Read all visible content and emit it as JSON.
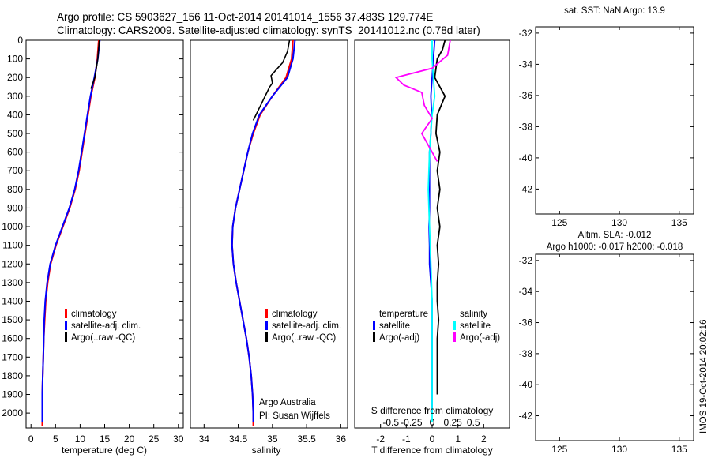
{
  "header": {
    "line1": "Argo profile: CS 5903627_156 11-Oct-2014 20141014_1556 37.483S 129.774E",
    "line2": "Climatology: CARS2009. Satellite-adjusted climatology: synTS_20141012.nc (0.78d later)"
  },
  "colors": {
    "climatology": "#ff0000",
    "satellite": "#0000ff",
    "argo": "#000000",
    "salinity_satellite": "#00ffff",
    "salinity_argo": "#ff00ff",
    "land": "#fcc594",
    "argo_marker": "#66cc33",
    "sla_field": "#3fbf3f"
  },
  "chart_data": [
    {
      "type": "line",
      "name": "temperature-panel",
      "xlabel": "temperature (deg C)",
      "ylabel": "",
      "xlim": [
        -1,
        31
      ],
      "ylim": [
        0,
        2080
      ],
      "y_inverted": true,
      "xticks": [
        0,
        5,
        10,
        15,
        20,
        25,
        30
      ],
      "yticks": [
        0,
        100,
        200,
        300,
        400,
        500,
        600,
        700,
        800,
        900,
        1000,
        1100,
        1200,
        1300,
        1400,
        1500,
        1600,
        1700,
        1800,
        1900,
        2000
      ],
      "legend": [
        "climatology",
        "satellite-adj. clim.",
        "Argo(..raw -QC)"
      ],
      "series": [
        {
          "name": "climatology",
          "x": [
            13.8,
            13.5,
            13.0,
            12.2,
            11.6,
            11.0,
            10.4,
            9.8,
            9.0,
            7.9,
            6.5,
            5.1,
            4.0,
            3.4,
            3.0,
            2.8,
            2.6,
            2.5,
            2.4,
            2.3,
            2.3,
            2.3
          ],
          "y": [
            0,
            100,
            200,
            300,
            400,
            500,
            600,
            700,
            800,
            900,
            1000,
            1100,
            1200,
            1300,
            1400,
            1500,
            1600,
            1700,
            1800,
            1900,
            2000,
            2070
          ]
        },
        {
          "name": "satellite-adj. clim.",
          "x": [
            14.0,
            13.6,
            12.9,
            12.1,
            11.5,
            10.9,
            10.3,
            9.7,
            8.9,
            7.8,
            6.4,
            5.0,
            3.9,
            3.3,
            2.9,
            2.7,
            2.6,
            2.5,
            2.4,
            2.3,
            2.3,
            2.3
          ],
          "y": [
            0,
            100,
            200,
            300,
            400,
            500,
            600,
            700,
            800,
            900,
            1000,
            1100,
            1200,
            1300,
            1400,
            1500,
            1600,
            1700,
            1800,
            1900,
            2000,
            2050
          ]
        },
        {
          "name": "Argo(..raw -QC)",
          "x": [
            13.9,
            13.6,
            13.0,
            12.2
          ],
          "y": [
            0,
            100,
            200,
            260
          ]
        }
      ]
    },
    {
      "type": "line",
      "name": "salinity-panel",
      "xlabel": "salinity",
      "xlim": [
        33.8,
        36.1
      ],
      "ylim": [
        0,
        2080
      ],
      "y_inverted": true,
      "xticks": [
        34,
        34.5,
        35,
        35.5,
        36
      ],
      "legend": [
        "climatology",
        "satellite-adj. clim.",
        "Argo(..raw -QC)"
      ],
      "annotation": [
        "Argo Australia",
        "PI: Susan Wijffels"
      ],
      "series": [
        {
          "name": "climatology",
          "x": [
            35.3,
            35.28,
            35.2,
            35.0,
            34.82,
            34.72,
            34.64,
            34.58,
            34.52,
            34.46,
            34.42,
            34.41,
            34.43,
            34.47,
            34.52,
            34.57,
            34.62,
            34.66,
            34.69,
            34.71,
            34.72,
            34.72
          ],
          "y": [
            0,
            100,
            200,
            300,
            400,
            500,
            600,
            700,
            800,
            900,
            1000,
            1100,
            1200,
            1300,
            1400,
            1500,
            1600,
            1700,
            1800,
            1900,
            2000,
            2070
          ]
        },
        {
          "name": "satellite-adj. clim.",
          "x": [
            35.33,
            35.3,
            35.22,
            35.0,
            34.81,
            34.71,
            34.64,
            34.58,
            34.52,
            34.46,
            34.42,
            34.41,
            34.43,
            34.47,
            34.52,
            34.57,
            34.62,
            34.66,
            34.69,
            34.71,
            34.72,
            34.72
          ],
          "y": [
            0,
            100,
            200,
            300,
            400,
            500,
            600,
            700,
            800,
            900,
            1000,
            1100,
            1200,
            1300,
            1400,
            1500,
            1600,
            1700,
            1800,
            1900,
            2000,
            2050
          ]
        },
        {
          "name": "Argo(..raw -QC)",
          "x": [
            35.25,
            35.22,
            35.15,
            35.05,
            34.98,
            34.99,
            35.0,
            34.96,
            34.92,
            34.88,
            34.84,
            34.8,
            34.76,
            34.72
          ],
          "y": [
            0,
            60,
            120,
            160,
            190,
            210,
            230,
            250,
            280,
            310,
            340,
            370,
            400,
            430
          ]
        }
      ]
    },
    {
      "type": "line",
      "name": "difference-panel",
      "xlabel": "T difference from climatology",
      "xlabel2": "S difference from climatology",
      "xlim": [
        -3,
        3
      ],
      "ylim": [
        0,
        2080
      ],
      "y_inverted": true,
      "xticks": [
        -2,
        -1,
        0,
        1,
        2
      ],
      "xticks_salinity": [
        "-0.5",
        "-0.25",
        "0",
        "0.25",
        "0.5"
      ],
      "legend_headers": [
        "temperature",
        "salinity"
      ],
      "legend": [
        "satellite",
        "Argo(-adj)",
        "satellite",
        "Argo(-adj)"
      ],
      "series": [
        {
          "name": "satellite",
          "x": [
            0.1,
            0.05,
            0.0,
            -0.05,
            -0.02,
            -0.05,
            -0.1,
            -0.1,
            -0.1,
            -0.1,
            -0.12,
            -0.1,
            -0.1,
            -0.05,
            0.0,
            0.0,
            0.0,
            0.0,
            0.0,
            0.0,
            0.0
          ],
          "y": [
            0,
            100,
            200,
            300,
            400,
            500,
            600,
            700,
            800,
            900,
            1000,
            1100,
            1200,
            1300,
            1400,
            1500,
            1600,
            1700,
            1800,
            1900,
            2000
          ]
        },
        {
          "name": "Argo(-adj)",
          "x": [
            0.5,
            0.4,
            0.2,
            0.1,
            0.5,
            0.2,
            0.15,
            0.3,
            0.2,
            0.3,
            0.2,
            0.3,
            0.2,
            0.25,
            0.2,
            0.2,
            0.25,
            0.2,
            0.2,
            0.2,
            0.2
          ],
          "y": [
            0,
            50,
            100,
            200,
            300,
            400,
            500,
            600,
            700,
            800,
            900,
            1000,
            1100,
            1200,
            1300,
            1400,
            1500,
            1600,
            1700,
            1800,
            1900
          ]
        },
        {
          "name": "satellite",
          "x": [
            0.0,
            0.0,
            0.05,
            0.1,
            0.0,
            -0.1,
            -0.15,
            -0.1,
            -0.05,
            0.0,
            0.0,
            0.0,
            0.0,
            0.0
          ],
          "y": [
            0,
            100,
            200,
            300,
            400,
            600,
            800,
            1000,
            1200,
            1400,
            1600,
            1800,
            1900,
            2050
          ]
        },
        {
          "name": "Argo(-adj)",
          "x": [
            0.7,
            0.6,
            0.0,
            -1.4,
            -1.1,
            -0.4,
            -0.3,
            0.0,
            -0.4,
            0.2
          ],
          "y": [
            0,
            80,
            150,
            200,
            240,
            280,
            350,
            420,
            500,
            650
          ]
        }
      ]
    },
    {
      "type": "heatmap",
      "name": "sst-map",
      "title": "sat. SST: NaN Argo: 13.9",
      "xticks": [
        125,
        130,
        135
      ],
      "yticks": [
        -32,
        -34,
        -36,
        -38,
        -40,
        -42
      ],
      "xlim": [
        123,
        136.2
      ],
      "ylim": [
        -43.6,
        -31.6
      ],
      "argo_position": [
        129.774,
        -37.483
      ]
    },
    {
      "type": "heatmap",
      "name": "sla-map",
      "title": "Altim. SLA: -0.012",
      "subtitle": "Argo h1000: -0.017 h2000: -0.018",
      "xticks": [
        125,
        130,
        135
      ],
      "yticks": [
        -32,
        -34,
        -36,
        -38,
        -40,
        -42
      ],
      "xlim": [
        123,
        136.2
      ],
      "ylim": [
        -43.6,
        -31.6
      ],
      "argo_position": [
        129.774,
        -37.483
      ]
    }
  ],
  "credit": "IMOS 19-Oct-2014 20:02:16"
}
